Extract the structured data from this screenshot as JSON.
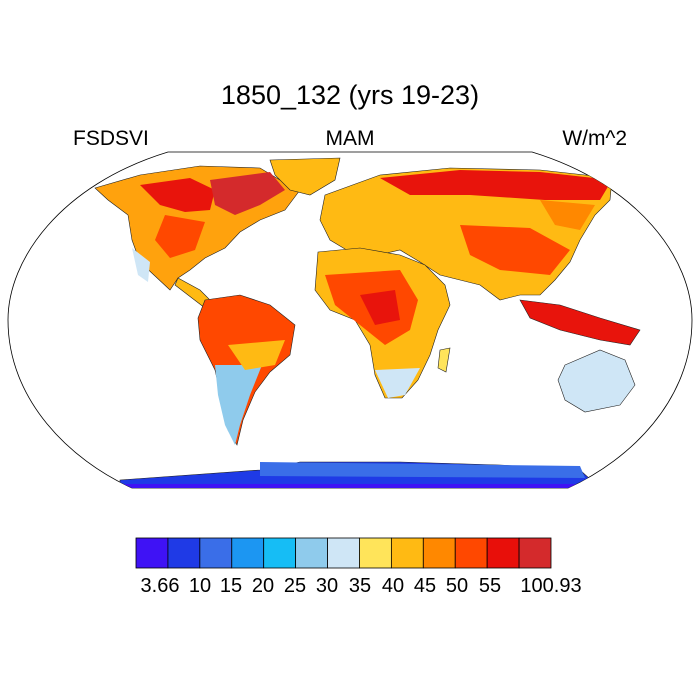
{
  "title": "1850_132 (yrs 19-23)",
  "left_label": "FSDSVI",
  "center_label": "MAM",
  "right_label": "W/m^2",
  "colorbar": {
    "colors": [
      "#3f12f5",
      "#1f3ae6",
      "#3a6ee8",
      "#1c96f2",
      "#16bdf5",
      "#8fcbec",
      "#cfe6f6",
      "#ffe45a",
      "#ffba13",
      "#ff8800",
      "#ff4800",
      "#e80f0a",
      "#d42a2c"
    ],
    "labels": [
      "3.66",
      "10",
      "15",
      "20",
      "25",
      "30",
      "35",
      "40",
      "45",
      "50",
      "55",
      "100.93"
    ]
  }
}
